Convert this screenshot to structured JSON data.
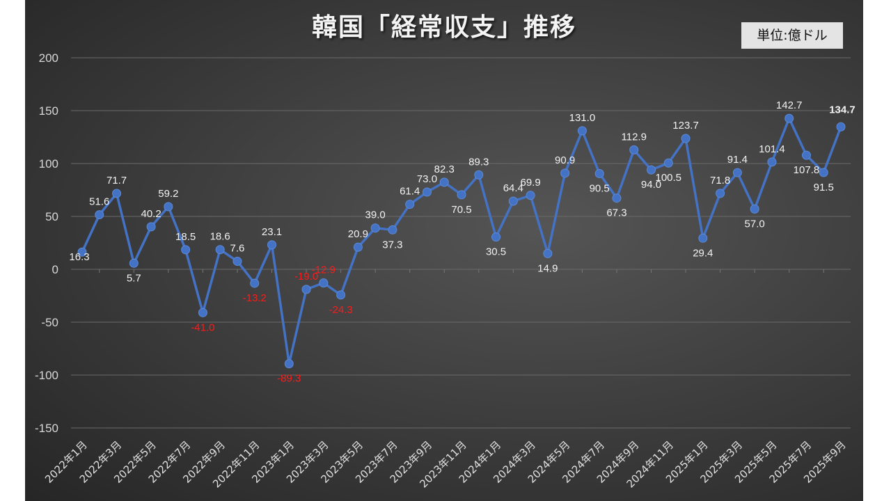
{
  "slide": {
    "title": "韓国「経常収支」推移",
    "unit_label": "単位:億ドル"
  },
  "chart_data": {
    "type": "line",
    "title": "韓国「経常収支」推移",
    "unit": "単位:億ドル",
    "xlabel": "",
    "ylabel": "",
    "ylim": [
      -150,
      200
    ],
    "yticks": [
      200,
      150,
      100,
      50,
      0,
      -50,
      -100,
      -150
    ],
    "grid": true,
    "legend": "none",
    "x_tick_labels": [
      "2022年1月",
      "2022年3月",
      "2022年5月",
      "2022年7月",
      "2022年9月",
      "2022年11月",
      "2023年1月",
      "2023年3月",
      "2023年5月",
      "2023年7月",
      "2023年9月",
      "2023年11月",
      "2024年1月",
      "2024年3月",
      "2024年5月",
      "2024年7月",
      "2024年9月",
      "2024年11月",
      "2025年1月",
      "2025年3月",
      "2025年5月",
      "2025年7月",
      "2025年9月"
    ],
    "categories": [
      "2022-01",
      "2022-02",
      "2022-03",
      "2022-04",
      "2022-05",
      "2022-06",
      "2022-07",
      "2022-08",
      "2022-09",
      "2022-10",
      "2022-11",
      "2022-12",
      "2023-01",
      "2023-02",
      "2023-03",
      "2023-04",
      "2023-05",
      "2023-06",
      "2023-07",
      "2023-08",
      "2023-09",
      "2023-10",
      "2023-11",
      "2023-12",
      "2024-01",
      "2024-02",
      "2024-03",
      "2024-04",
      "2024-05",
      "2024-06",
      "2024-07",
      "2024-08",
      "2024-09",
      "2024-10",
      "2024-11",
      "2024-12",
      "2025-01",
      "2025-02",
      "2025-03",
      "2025-04",
      "2025-05",
      "2025-06",
      "2025-07",
      "2025-08",
      "2025-09"
    ],
    "series": [
      {
        "name": "経常収支",
        "color": "#4472c4",
        "values": [
          16.3,
          51.6,
          71.7,
          5.7,
          40.2,
          59.2,
          18.5,
          -41.0,
          18.6,
          7.6,
          -13.2,
          23.1,
          -89.3,
          -19.0,
          -12.9,
          -24.3,
          20.9,
          39.0,
          37.3,
          61.4,
          73.0,
          82.3,
          70.5,
          89.3,
          30.5,
          64.4,
          69.9,
          14.9,
          90.9,
          131.0,
          90.5,
          67.3,
          112.9,
          94.0,
          100.5,
          123.7,
          29.4,
          71.8,
          91.4,
          57.0,
          101.4,
          142.7,
          107.8,
          91.5,
          134.7
        ],
        "labels": [
          "16.3",
          "51.6",
          "71.7",
          "5.7",
          "40.2",
          "59.2",
          "18.5",
          "-41.0",
          "18.6",
          "7.6",
          "-13.2",
          "23.1",
          "-89.3",
          "-19.0",
          "-12.9",
          "-24.3",
          "20.9",
          "39.0",
          "37.3",
          "61.4",
          "73.0",
          "82.3",
          "70.5",
          "89.3",
          "30.5",
          "64.4",
          "69.9",
          "14.9",
          "90.9",
          "131.0",
          "90.5",
          "67.3",
          "112.9",
          "94.0",
          "100.5",
          "123.7",
          "29.4",
          "71.8",
          "91.4",
          "57.0",
          "101.4",
          "142.7",
          "107.8",
          "91.5",
          "134.7"
        ]
      }
    ],
    "colors": {
      "line": "#4472c4",
      "positive_label": "#f2f2f2",
      "negative_label": "#ff1a1a",
      "gridline": "#6a6a6a"
    },
    "highlight": {
      "index": 44,
      "label": "134.7"
    }
  }
}
